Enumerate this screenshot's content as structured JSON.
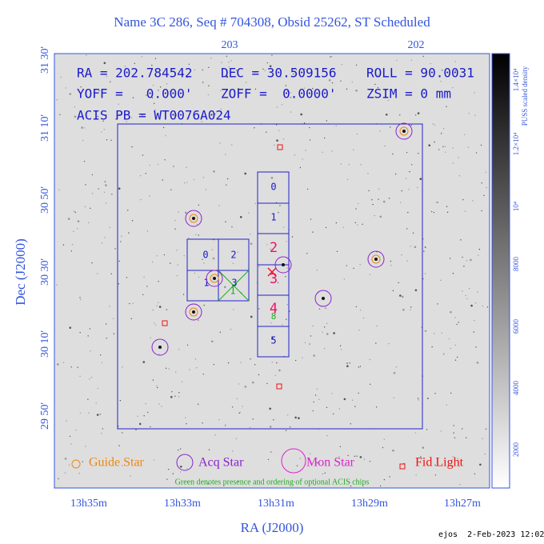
{
  "title": "Name 3C 286, Seq # 704308, Obsid 25262, ST Scheduled",
  "top_ticks": [
    "203",
    "202"
  ],
  "left_ticks": [
    "31 30'",
    "31 10'",
    "30 50'",
    "30 30'",
    "30 10'",
    "29 50'"
  ],
  "bottom_ticks": [
    "13h35m",
    "13h33m",
    "13h31m",
    "13h29m",
    "13h27m"
  ],
  "x_label": "RA (J2000)",
  "y_label": "Dec (J2000)",
  "info": [
    "RA = 202.784542",
    "DEC = 30.509156",
    "ROLL = 90.0031",
    "YOFF =   0.000'",
    "ZOFF =  0.0000'",
    "ZSIM = 0 mm",
    "ACIS PB = WT0076A024"
  ],
  "chips": {
    "column": [
      "0",
      "1",
      "2",
      "3",
      "4",
      "5"
    ],
    "block": [
      "0",
      "2",
      "1",
      "3"
    ],
    "optional": [
      "1",
      "8"
    ]
  },
  "legend": [
    "Guide Star",
    "Acq Star",
    "Mon Star",
    "Fid Light"
  ],
  "legend_note": "Green denotes presence and ordering of optional ACIS chips",
  "colorbar": {
    "label": "PUSS scaled density",
    "ticks": [
      "2000",
      "4000",
      "6000",
      "8000",
      "10⁴",
      "1.2×10⁴",
      "1.4×10⁴"
    ]
  },
  "footer": "ejos  2-Feb-2023 12:02"
}
